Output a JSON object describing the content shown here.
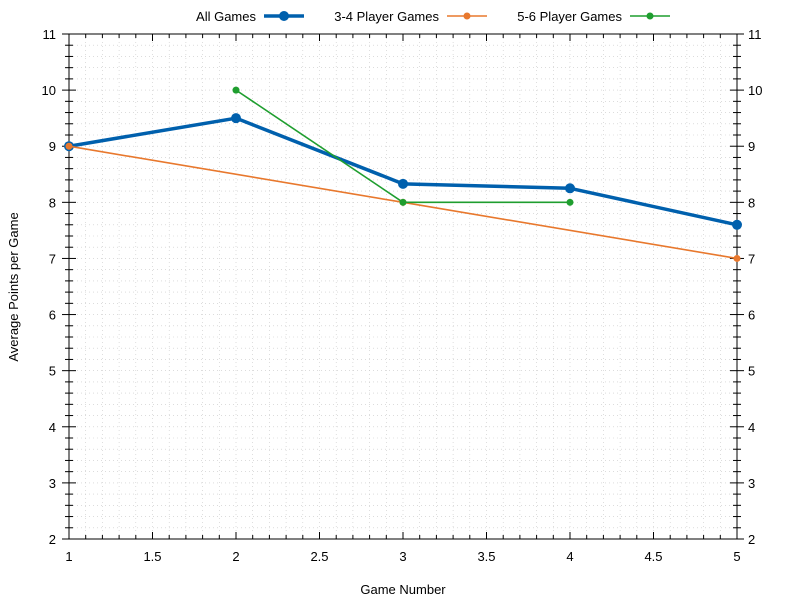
{
  "chart_data": {
    "type": "line",
    "xlabel": "Game Number",
    "ylabel": "Average Points per Game",
    "xlim": [
      1,
      5
    ],
    "ylim": [
      2,
      11
    ],
    "x_ticks": [
      "1",
      "1.5",
      "2",
      "2.5",
      "3",
      "3.5",
      "4",
      "4.5",
      "5"
    ],
    "y_ticks": [
      "2",
      "3",
      "4",
      "5",
      "6",
      "7",
      "8",
      "9",
      "10",
      "11"
    ],
    "grid": true,
    "legend_position": "top",
    "series": [
      {
        "name": "All Games",
        "color": "#0060ad",
        "points": [
          [
            1,
            9.0
          ],
          [
            2,
            9.5
          ],
          [
            3,
            8.33
          ],
          [
            4,
            8.25
          ],
          [
            5,
            7.6
          ]
        ]
      },
      {
        "name": "3-4 Player Games",
        "color": "#e8782d",
        "points": [
          [
            1,
            9.0
          ],
          [
            3,
            8.0
          ],
          [
            5,
            7.0
          ]
        ]
      },
      {
        "name": "5-6 Player Games",
        "color": "#1f9e2f",
        "points": [
          [
            2,
            10.0
          ],
          [
            3,
            8.0
          ],
          [
            4,
            8.0
          ]
        ]
      }
    ]
  }
}
